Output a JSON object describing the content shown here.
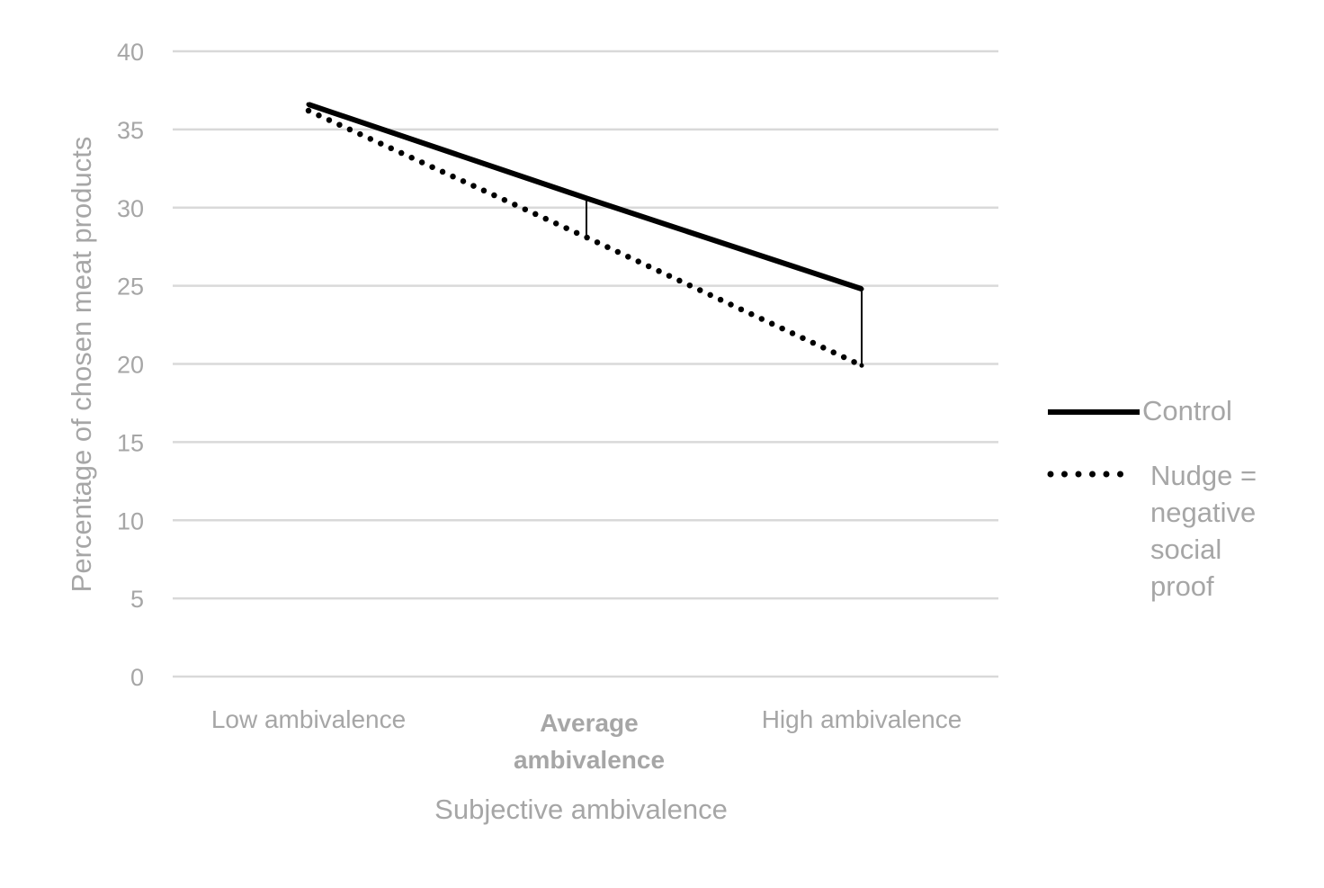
{
  "chart_data": {
    "type": "line",
    "categories": [
      "Low ambivalence",
      "Average ambivalence",
      "High ambivalence"
    ],
    "series": [
      {
        "name": "Control",
        "values": [
          36.6,
          30.6,
          24.8
        ],
        "style": "solid",
        "color": "#000000"
      },
      {
        "name": "Nudge = negative social proof",
        "values": [
          36.2,
          28.1,
          19.9
        ],
        "style": "dotted",
        "color": "#000000"
      }
    ],
    "xlabel": "Subjective ambivalence",
    "ylabel": "Percentage of chosen meat products",
    "ylim": [
      0,
      40
    ],
    "yticks": [
      "0",
      "5",
      "10",
      "15",
      "20",
      "25",
      "30",
      "35",
      "40"
    ],
    "grid": true,
    "legend_position": "right",
    "legend_lines": {
      "control": [
        "Control"
      ],
      "nudge": [
        "Nudge =",
        "negative",
        "social",
        "proof"
      ]
    },
    "category_lines": [
      [
        "Low ambivalence"
      ],
      [
        "Average",
        "ambivalence"
      ],
      [
        "High ambivalence"
      ]
    ],
    "difference_markers": [
      {
        "category": "Average ambivalence",
        "from": 30.6,
        "to": 28.1
      },
      {
        "category": "High ambivalence",
        "from": 24.8,
        "to": 19.9
      }
    ],
    "colors": {
      "grid": "#d9d9d9",
      "text": "#a6a6a6",
      "series": "#000000"
    }
  }
}
